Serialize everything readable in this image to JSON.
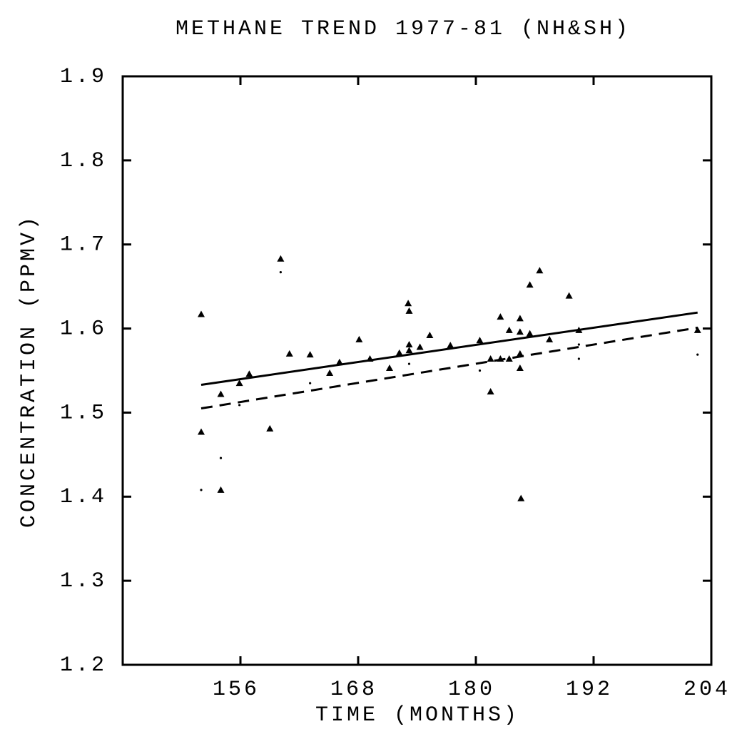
{
  "chart_data": {
    "type": "scatter",
    "title": "METHANE TREND 1977-81 (NH&SH)",
    "xlabel": "TIME (MONTHS)",
    "ylabel": "CONCENTRATION (PPMV)",
    "xlim": [
      144,
      204
    ],
    "xticks": [
      156,
      168,
      180,
      192,
      204
    ],
    "ylim": [
      1.2,
      1.9
    ],
    "yticks": [
      1.2,
      1.3,
      1.4,
      1.5,
      1.6,
      1.7,
      1.8,
      1.9
    ],
    "series": [
      {
        "marker": "triangle",
        "color": "#000000",
        "x": [
          152.0,
          152.0,
          154.0,
          154.0,
          155.9,
          156.9,
          159.0,
          160.1,
          161.0,
          163.1,
          165.1,
          166.1,
          168.1,
          169.2,
          171.2,
          172.2,
          173.1,
          173.2,
          173.2,
          173.2,
          174.3,
          175.3,
          177.4,
          180.4,
          181.5,
          181.5,
          182.5,
          182.5,
          183.4,
          183.4,
          184.5,
          184.5,
          184.5,
          184.5,
          184.6,
          185.5,
          185.5,
          186.5,
          187.5,
          189.5,
          190.5,
          202.6
        ],
        "values": [
          1.617,
          1.477,
          1.522,
          1.408,
          1.535,
          1.546,
          1.481,
          1.683,
          1.57,
          1.569,
          1.547,
          1.56,
          1.587,
          1.564,
          1.553,
          1.571,
          1.63,
          1.621,
          1.581,
          1.574,
          1.578,
          1.592,
          1.58,
          1.586,
          1.525,
          1.564,
          1.614,
          1.564,
          1.598,
          1.564,
          1.612,
          1.596,
          1.57,
          1.553,
          1.398,
          1.594,
          1.652,
          1.669,
          1.587,
          1.639,
          1.598,
          1.598
        ]
      },
      {
        "marker": "dot",
        "color": "#000000",
        "x": [
          152.0,
          154.0,
          160.1,
          163.1,
          155.9,
          173.2,
          180.4,
          184.5,
          190.5,
          190.5,
          202.6
        ],
        "values": [
          1.408,
          1.446,
          1.667,
          1.535,
          1.509,
          1.558,
          1.55,
          1.568,
          1.564,
          1.581,
          1.569
        ]
      }
    ],
    "lines": [
      {
        "style": "solid",
        "color": "#000000",
        "x": [
          152.0,
          202.6
        ],
        "values": [
          1.533,
          1.619
        ]
      },
      {
        "style": "dashed",
        "color": "#000000",
        "x": [
          152.0,
          202.6
        ],
        "values": [
          1.505,
          1.601
        ]
      }
    ]
  }
}
